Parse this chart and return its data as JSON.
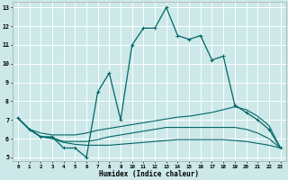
{
  "xlabel": "Humidex (Indice chaleur)",
  "bg_color": "#cce8e8",
  "grid_color": "#ffffff",
  "line_color": "#006666",
  "xlim": [
    -0.5,
    23.5
  ],
  "ylim": [
    4.8,
    13.3
  ],
  "xticks": [
    0,
    1,
    2,
    3,
    4,
    5,
    6,
    7,
    8,
    9,
    10,
    11,
    12,
    13,
    14,
    15,
    16,
    17,
    18,
    19,
    20,
    21,
    22,
    23
  ],
  "yticks": [
    5,
    6,
    7,
    8,
    9,
    10,
    11,
    12,
    13
  ],
  "line1_x": [
    0,
    1,
    2,
    3,
    4,
    5,
    6,
    7,
    8,
    9,
    10,
    11,
    12,
    13,
    14,
    15,
    16,
    17,
    18,
    19,
    20,
    21,
    22,
    23
  ],
  "line1_y": [
    7.1,
    6.5,
    6.1,
    6.1,
    5.5,
    5.5,
    5.0,
    8.5,
    9.5,
    7.0,
    11.0,
    11.9,
    11.9,
    13.0,
    11.5,
    11.3,
    11.5,
    10.2,
    10.4,
    7.8,
    7.4,
    7.0,
    6.5,
    5.5
  ],
  "line2_x": [
    0,
    1,
    2,
    3,
    4,
    5,
    6,
    7,
    8,
    9,
    10,
    11,
    12,
    13,
    14,
    15,
    16,
    17,
    18,
    19,
    20,
    21,
    22,
    23
  ],
  "line2_y": [
    7.1,
    6.5,
    6.3,
    6.2,
    6.2,
    6.2,
    6.3,
    6.45,
    6.55,
    6.65,
    6.75,
    6.85,
    6.95,
    7.05,
    7.15,
    7.2,
    7.3,
    7.4,
    7.55,
    7.7,
    7.55,
    7.2,
    6.7,
    5.5
  ],
  "line3_x": [
    0,
    1,
    2,
    3,
    4,
    5,
    6,
    7,
    8,
    9,
    10,
    11,
    12,
    13,
    14,
    15,
    16,
    17,
    18,
    19,
    20,
    21,
    22,
    23
  ],
  "line3_y": [
    7.1,
    6.5,
    6.1,
    6.05,
    5.85,
    5.85,
    5.85,
    5.95,
    6.1,
    6.2,
    6.3,
    6.4,
    6.5,
    6.6,
    6.6,
    6.6,
    6.6,
    6.6,
    6.6,
    6.6,
    6.5,
    6.3,
    6.0,
    5.5
  ],
  "line4_x": [
    0,
    1,
    2,
    3,
    4,
    5,
    6,
    7,
    8,
    9,
    10,
    11,
    12,
    13,
    14,
    15,
    16,
    17,
    18,
    19,
    20,
    21,
    22,
    23
  ],
  "line4_y": [
    7.1,
    6.5,
    6.1,
    6.0,
    5.8,
    5.7,
    5.65,
    5.65,
    5.65,
    5.7,
    5.75,
    5.8,
    5.85,
    5.9,
    5.95,
    5.95,
    5.95,
    5.95,
    5.95,
    5.9,
    5.85,
    5.75,
    5.65,
    5.5
  ]
}
